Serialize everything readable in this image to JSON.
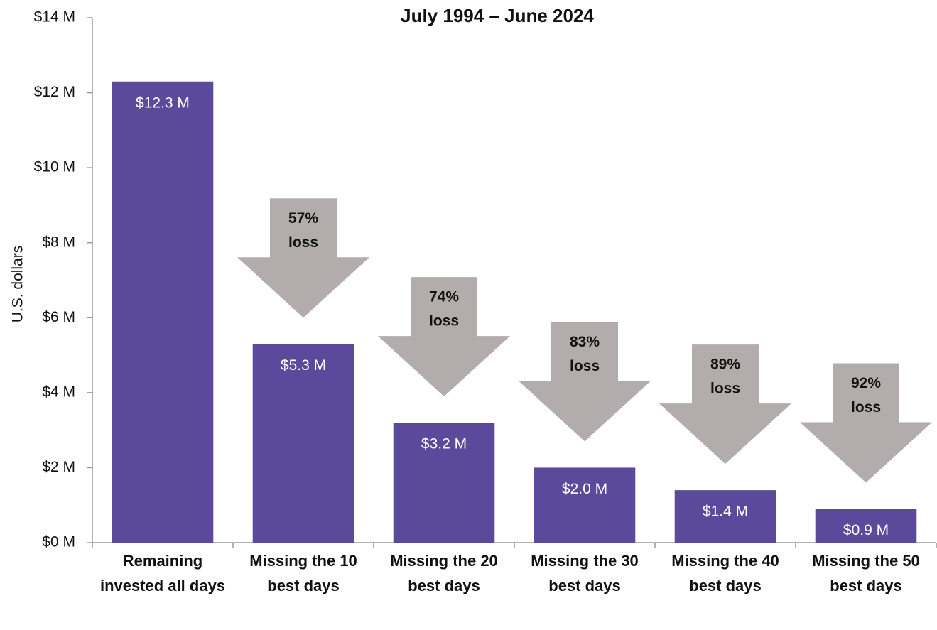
{
  "chart_data": {
    "type": "bar",
    "title": "July 1994 – June 2024",
    "y_label": "U.S. dollars",
    "categories": [
      "Remaining invested all days",
      "Missing the 10 best days",
      "Missing the 20 best days",
      "Missing the 30 best days",
      "Missing the 40 best days",
      "Missing the 50 best days"
    ],
    "values": [
      12.3,
      5.3,
      3.2,
      2.0,
      1.4,
      0.9
    ],
    "value_labels": [
      "$12.3 M",
      "$5.3 M",
      "$3.2 M",
      "$2.0 M",
      "$1.4 M",
      "$0.9 M"
    ],
    "color": "#5b4a9b",
    "annotations": [
      null,
      [
        "57%",
        "loss"
      ],
      [
        "74%",
        "loss"
      ],
      [
        "83%",
        "loss"
      ],
      [
        "89%",
        "loss"
      ],
      [
        "92%",
        "loss"
      ]
    ],
    "annotation_color": "#b3acac",
    "ylim": [
      0,
      14
    ],
    "yticks": [
      {
        "value": 0,
        "label": "$0 M"
      },
      {
        "value": 2,
        "label": "$2 M"
      },
      {
        "value": 4,
        "label": "$4 M"
      },
      {
        "value": 6,
        "label": "$6 M"
      },
      {
        "value": 8,
        "label": "$8 M"
      },
      {
        "value": 10,
        "label": "$10 M"
      },
      {
        "value": 12,
        "label": "$12 M"
      },
      {
        "value": 14,
        "label": "$14 M"
      }
    ],
    "grid": false
  }
}
